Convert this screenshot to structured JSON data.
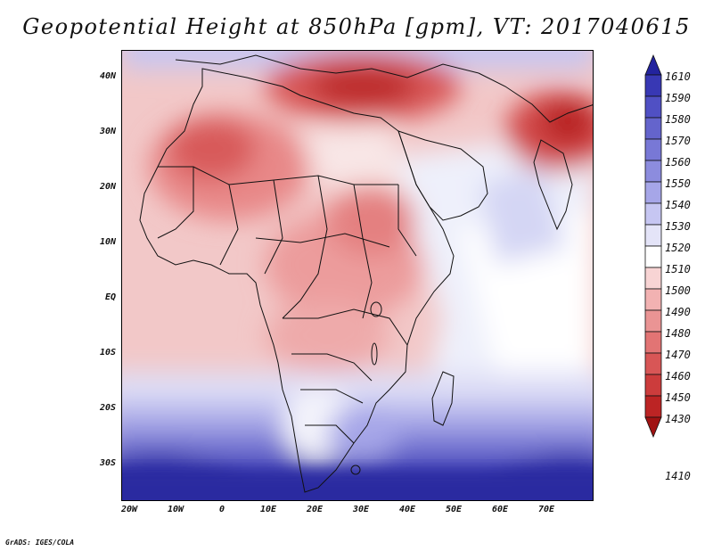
{
  "title": "Geopotential Height at 850hPa [gpm], VT: 2017040615",
  "credit": "GrADS: IGES/COLA",
  "map": {
    "lat_ticks": [
      "40N",
      "30N",
      "20N",
      "10N",
      "EQ",
      "10S",
      "20S",
      "30S"
    ],
    "lon_ticks": [
      "20W",
      "10W",
      "0",
      "10E",
      "20E",
      "30E",
      "40E",
      "50E",
      "60E",
      "70E"
    ]
  },
  "colorbar": {
    "levels": [
      "1610",
      "1590",
      "1580",
      "1570",
      "1560",
      "1550",
      "1540",
      "1530",
      "1520",
      "1510",
      "1500",
      "1490",
      "1480",
      "1470",
      "1460",
      "1450",
      "1430",
      "1410"
    ],
    "colors": [
      "#23239e",
      "#3838b4",
      "#5050c4",
      "#6464cc",
      "#7878d6",
      "#8c8cde",
      "#a6a6e8",
      "#c6c6f2",
      "#e4e4f8",
      "#ffffff",
      "#f8d4d4",
      "#f2b2b2",
      "#ea9494",
      "#e27474",
      "#d85656",
      "#cc3c3c",
      "#bc2424",
      "#a01212"
    ]
  }
}
